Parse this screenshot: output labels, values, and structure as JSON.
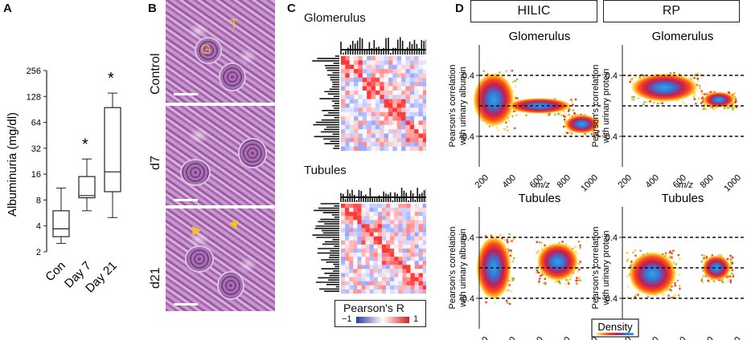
{
  "panels": {
    "a": {
      "label": "A",
      "ylabel": "Albuminuria (mg/dl)",
      "yticks": [
        "256",
        "128",
        "64",
        "32",
        "16",
        "8",
        "4",
        "2"
      ],
      "categories": [
        "Con",
        "Day 7",
        "Day 21"
      ],
      "significance": [
        "",
        "*",
        "*"
      ]
    },
    "b": {
      "label": "B",
      "rows": [
        "Control",
        "d7",
        "d21"
      ],
      "annotations": {
        "t": "T",
        "g": "G"
      }
    },
    "c": {
      "label": "C",
      "titles": [
        "Glomerulus",
        "Tubules"
      ],
      "legend_title": "Pearson's R",
      "legend_min": "−1",
      "legend_max": "1"
    },
    "d": {
      "label": "D",
      "col_headers": [
        "HILIC",
        "RP"
      ],
      "subtitles": [
        "Glomerulus",
        "Glomerulus",
        "Tubules",
        "Tubules"
      ],
      "ylabel_hilic": [
        "Pearson's correlation",
        "with urinary albumin"
      ],
      "ylabel_rp": [
        "Pearson's correlation",
        "with urinary protein"
      ],
      "yticks": [
        "0.4",
        "-0.4"
      ],
      "xticks": [
        "200",
        "400",
        "600",
        "800",
        "1000"
      ],
      "xlabel": "m/z",
      "density_label": "Density"
    }
  },
  "chart_data": {
    "type": "box",
    "title": "",
    "xlabel": "",
    "ylabel": "Albuminuria (mg/dl)",
    "yscale": "log2",
    "ylim": [
      2,
      256
    ],
    "categories": [
      "Con",
      "Day 7",
      "Day 21"
    ],
    "boxes": [
      {
        "min": 2.5,
        "q1": 3.0,
        "median": 3.7,
        "q3": 6.0,
        "max": 11
      },
      {
        "min": 6.0,
        "q1": 8.5,
        "median": 9.0,
        "q3": 15,
        "max": 24
      },
      {
        "min": 5.0,
        "q1": 10,
        "median": 17,
        "q3": 95,
        "max": 140
      }
    ],
    "significance": [
      "",
      "*",
      "*"
    ]
  }
}
